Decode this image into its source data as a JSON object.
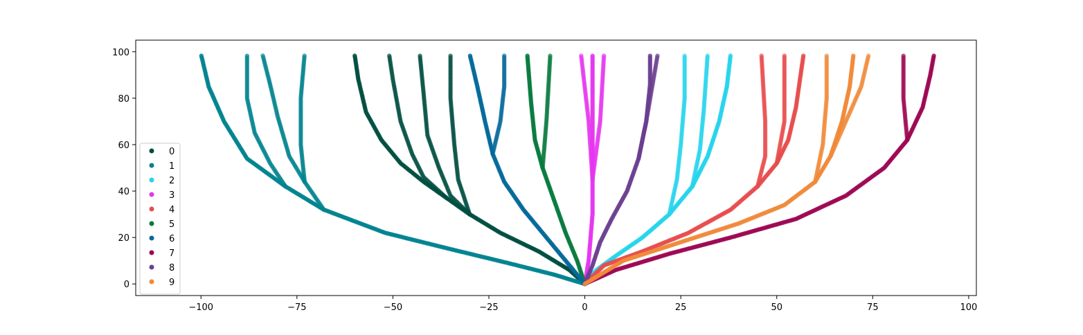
{
  "chart_data": {
    "type": "scatter",
    "title": "",
    "xlabel": "",
    "ylabel": "",
    "xlim": [
      -117,
      102
    ],
    "ylim": [
      -5,
      105
    ],
    "xticks": [
      -100,
      -75,
      -50,
      -25,
      0,
      25,
      50,
      75,
      100
    ],
    "yticks": [
      0,
      20,
      40,
      60,
      80,
      100
    ],
    "xtick_labels": [
      "−100",
      "−75",
      "−50",
      "−25",
      "0",
      "25",
      "50",
      "75",
      "100"
    ],
    "ytick_labels": [
      "0",
      "20",
      "40",
      "60",
      "80",
      "100"
    ],
    "grid": false,
    "legend_position": "lower left",
    "series": [
      {
        "name": "0",
        "color": "#004d40",
        "branches": [
          {
            "points": [
              [
                0,
                0
              ],
              [
                -4,
                6
              ],
              [
                -12,
                14
              ],
              [
                -22,
                22
              ],
              [
                -30,
                30
              ],
              [
                -36,
                37
              ],
              [
                -42,
                44
              ],
              [
                -48,
                52
              ],
              [
                -53,
                62
              ],
              [
                -57,
                74
              ],
              [
                -59,
                88
              ],
              [
                -60,
                99
              ]
            ]
          },
          {
            "points": [
              [
                -36,
                37
              ],
              [
                -42,
                46
              ],
              [
                -45,
                56
              ],
              [
                -48,
                70
              ],
              [
                -50,
                88
              ],
              [
                -51,
                99
              ]
            ]
          },
          {
            "points": [
              [
                -30,
                30
              ],
              [
                -35,
                38
              ],
              [
                -38,
                50
              ],
              [
                -41,
                64
              ],
              [
                -42,
                82
              ],
              [
                -43,
                99
              ]
            ]
          },
          {
            "points": [
              [
                -30,
                30
              ],
              [
                -33,
                45
              ],
              [
                -34,
                60
              ],
              [
                -35,
                80
              ],
              [
                -35,
                99
              ]
            ]
          }
        ]
      },
      {
        "name": "1",
        "color": "#00838f",
        "branches": [
          {
            "points": [
              [
                0,
                0
              ],
              [
                -8,
                4
              ],
              [
                -20,
                9
              ],
              [
                -35,
                15
              ],
              [
                -52,
                22
              ],
              [
                -68,
                32
              ],
              [
                -78,
                42
              ],
              [
                -88,
                54
              ],
              [
                -94,
                70
              ],
              [
                -98,
                85
              ],
              [
                -100,
                99
              ]
            ]
          },
          {
            "points": [
              [
                -68,
                32
              ],
              [
                -73,
                44
              ],
              [
                -77,
                55
              ],
              [
                -80,
                72
              ],
              [
                -82,
                86
              ],
              [
                -84,
                99
              ]
            ]
          },
          {
            "points": [
              [
                -78,
                42
              ],
              [
                -82,
                52
              ],
              [
                -86,
                65
              ],
              [
                -88,
                80
              ],
              [
                -88,
                99
              ]
            ]
          },
          {
            "points": [
              [
                -73,
                44
              ],
              [
                -74,
                60
              ],
              [
                -74,
                80
              ],
              [
                -73,
                99
              ]
            ]
          }
        ]
      },
      {
        "name": "2",
        "color": "#26d4ec",
        "branches": [
          {
            "points": [
              [
                0,
                0
              ],
              [
                3,
                6
              ],
              [
                8,
                12
              ],
              [
                15,
                20
              ],
              [
                22,
                30
              ],
              [
                28,
                42
              ],
              [
                32,
                55
              ],
              [
                35,
                70
              ],
              [
                37,
                85
              ],
              [
                38,
                99
              ]
            ]
          },
          {
            "points": [
              [
                22,
                30
              ],
              [
                24,
                45
              ],
              [
                25,
                60
              ],
              [
                26,
                80
              ],
              [
                26,
                99
              ]
            ]
          },
          {
            "points": [
              [
                28,
                42
              ],
              [
                30,
                58
              ],
              [
                31,
                75
              ],
              [
                32,
                99
              ]
            ]
          }
        ]
      },
      {
        "name": "3",
        "color": "#e536f0",
        "branches": [
          {
            "points": [
              [
                0,
                0
              ],
              [
                1,
                10
              ],
              [
                1.5,
                20
              ],
              [
                2,
                30
              ],
              [
                2,
                45
              ],
              [
                2,
                60
              ],
              [
                2,
                80
              ],
              [
                2,
                99
              ]
            ]
          },
          {
            "points": [
              [
                2,
                45
              ],
              [
                1,
                70
              ],
              [
                -1,
                99
              ]
            ]
          },
          {
            "points": [
              [
                2,
                45
              ],
              [
                4,
                70
              ],
              [
                5,
                99
              ]
            ]
          }
        ]
      },
      {
        "name": "4",
        "color": "#e84c4c",
        "branches": [
          {
            "points": [
              [
                0,
                0
              ],
              [
                5,
                8
              ],
              [
                15,
                14
              ],
              [
                27,
                22
              ],
              [
                38,
                32
              ],
              [
                45,
                42
              ],
              [
                50,
                52
              ],
              [
                53,
                62
              ],
              [
                55,
                76
              ],
              [
                57,
                99
              ]
            ]
          },
          {
            "points": [
              [
                45,
                42
              ],
              [
                47,
                55
              ],
              [
                47,
                70
              ],
              [
                46,
                99
              ]
            ]
          },
          {
            "points": [
              [
                50,
                52
              ],
              [
                52,
                70
              ],
              [
                52,
                99
              ]
            ]
          }
        ]
      },
      {
        "name": "5",
        "color": "#087a3e",
        "branches": [
          {
            "points": [
              [
                0,
                0
              ],
              [
                -2,
                10
              ],
              [
                -5,
                22
              ],
              [
                -8,
                36
              ],
              [
                -11,
                50
              ],
              [
                -13,
                62
              ],
              [
                -14,
                78
              ],
              [
                -15,
                99
              ]
            ]
          },
          {
            "points": [
              [
                -11,
                50
              ],
              [
                -10,
                70
              ],
              [
                -9,
                99
              ]
            ]
          }
        ]
      },
      {
        "name": "6",
        "color": "#04689a",
        "branches": [
          {
            "points": [
              [
                0,
                0
              ],
              [
                -4,
                8
              ],
              [
                -10,
                20
              ],
              [
                -16,
                32
              ],
              [
                -21,
                44
              ],
              [
                -24,
                56
              ],
              [
                -26,
                70
              ],
              [
                -28,
                85
              ],
              [
                -30,
                99
              ]
            ]
          },
          {
            "points": [
              [
                -24,
                56
              ],
              [
                -22,
                70
              ],
              [
                -21,
                85
              ],
              [
                -21,
                99
              ]
            ]
          }
        ]
      },
      {
        "name": "7",
        "color": "#9c0752",
        "branches": [
          {
            "points": [
              [
                0,
                0
              ],
              [
                8,
                6
              ],
              [
                22,
                13
              ],
              [
                38,
                20
              ],
              [
                55,
                28
              ],
              [
                68,
                38
              ],
              [
                78,
                50
              ],
              [
                84,
                62
              ],
              [
                88,
                76
              ],
              [
                90,
                90
              ],
              [
                91,
                99
              ]
            ]
          },
          {
            "points": [
              [
                84,
                62
              ],
              [
                83,
                80
              ],
              [
                83,
                99
              ]
            ]
          }
        ]
      },
      {
        "name": "8",
        "color": "#6b3f90",
        "branches": [
          {
            "points": [
              [
                0,
                0
              ],
              [
                2,
                8
              ],
              [
                4,
                18
              ],
              [
                7,
                28
              ],
              [
                11,
                40
              ],
              [
                14,
                54
              ],
              [
                16,
                70
              ],
              [
                17,
                86
              ],
              [
                17,
                99
              ]
            ]
          },
          {
            "points": [
              [
                14,
                54
              ],
              [
                16,
                70
              ],
              [
                19,
                99
              ]
            ]
          }
        ]
      },
      {
        "name": "9",
        "color": "#f08a3a",
        "branches": [
          {
            "points": [
              [
                0,
                0
              ],
              [
                10,
                10
              ],
              [
                25,
                18
              ],
              [
                40,
                26
              ],
              [
                52,
                34
              ],
              [
                60,
                44
              ],
              [
                64,
                55
              ],
              [
                67,
                70
              ],
              [
                69,
                85
              ],
              [
                70,
                99
              ]
            ]
          },
          {
            "points": [
              [
                60,
                44
              ],
              [
                62,
                60
              ],
              [
                63,
                80
              ],
              [
                63,
                99
              ]
            ]
          },
          {
            "points": [
              [
                64,
                55
              ],
              [
                68,
                70
              ],
              [
                72,
                85
              ],
              [
                74,
                99
              ]
            ]
          }
        ]
      }
    ]
  }
}
